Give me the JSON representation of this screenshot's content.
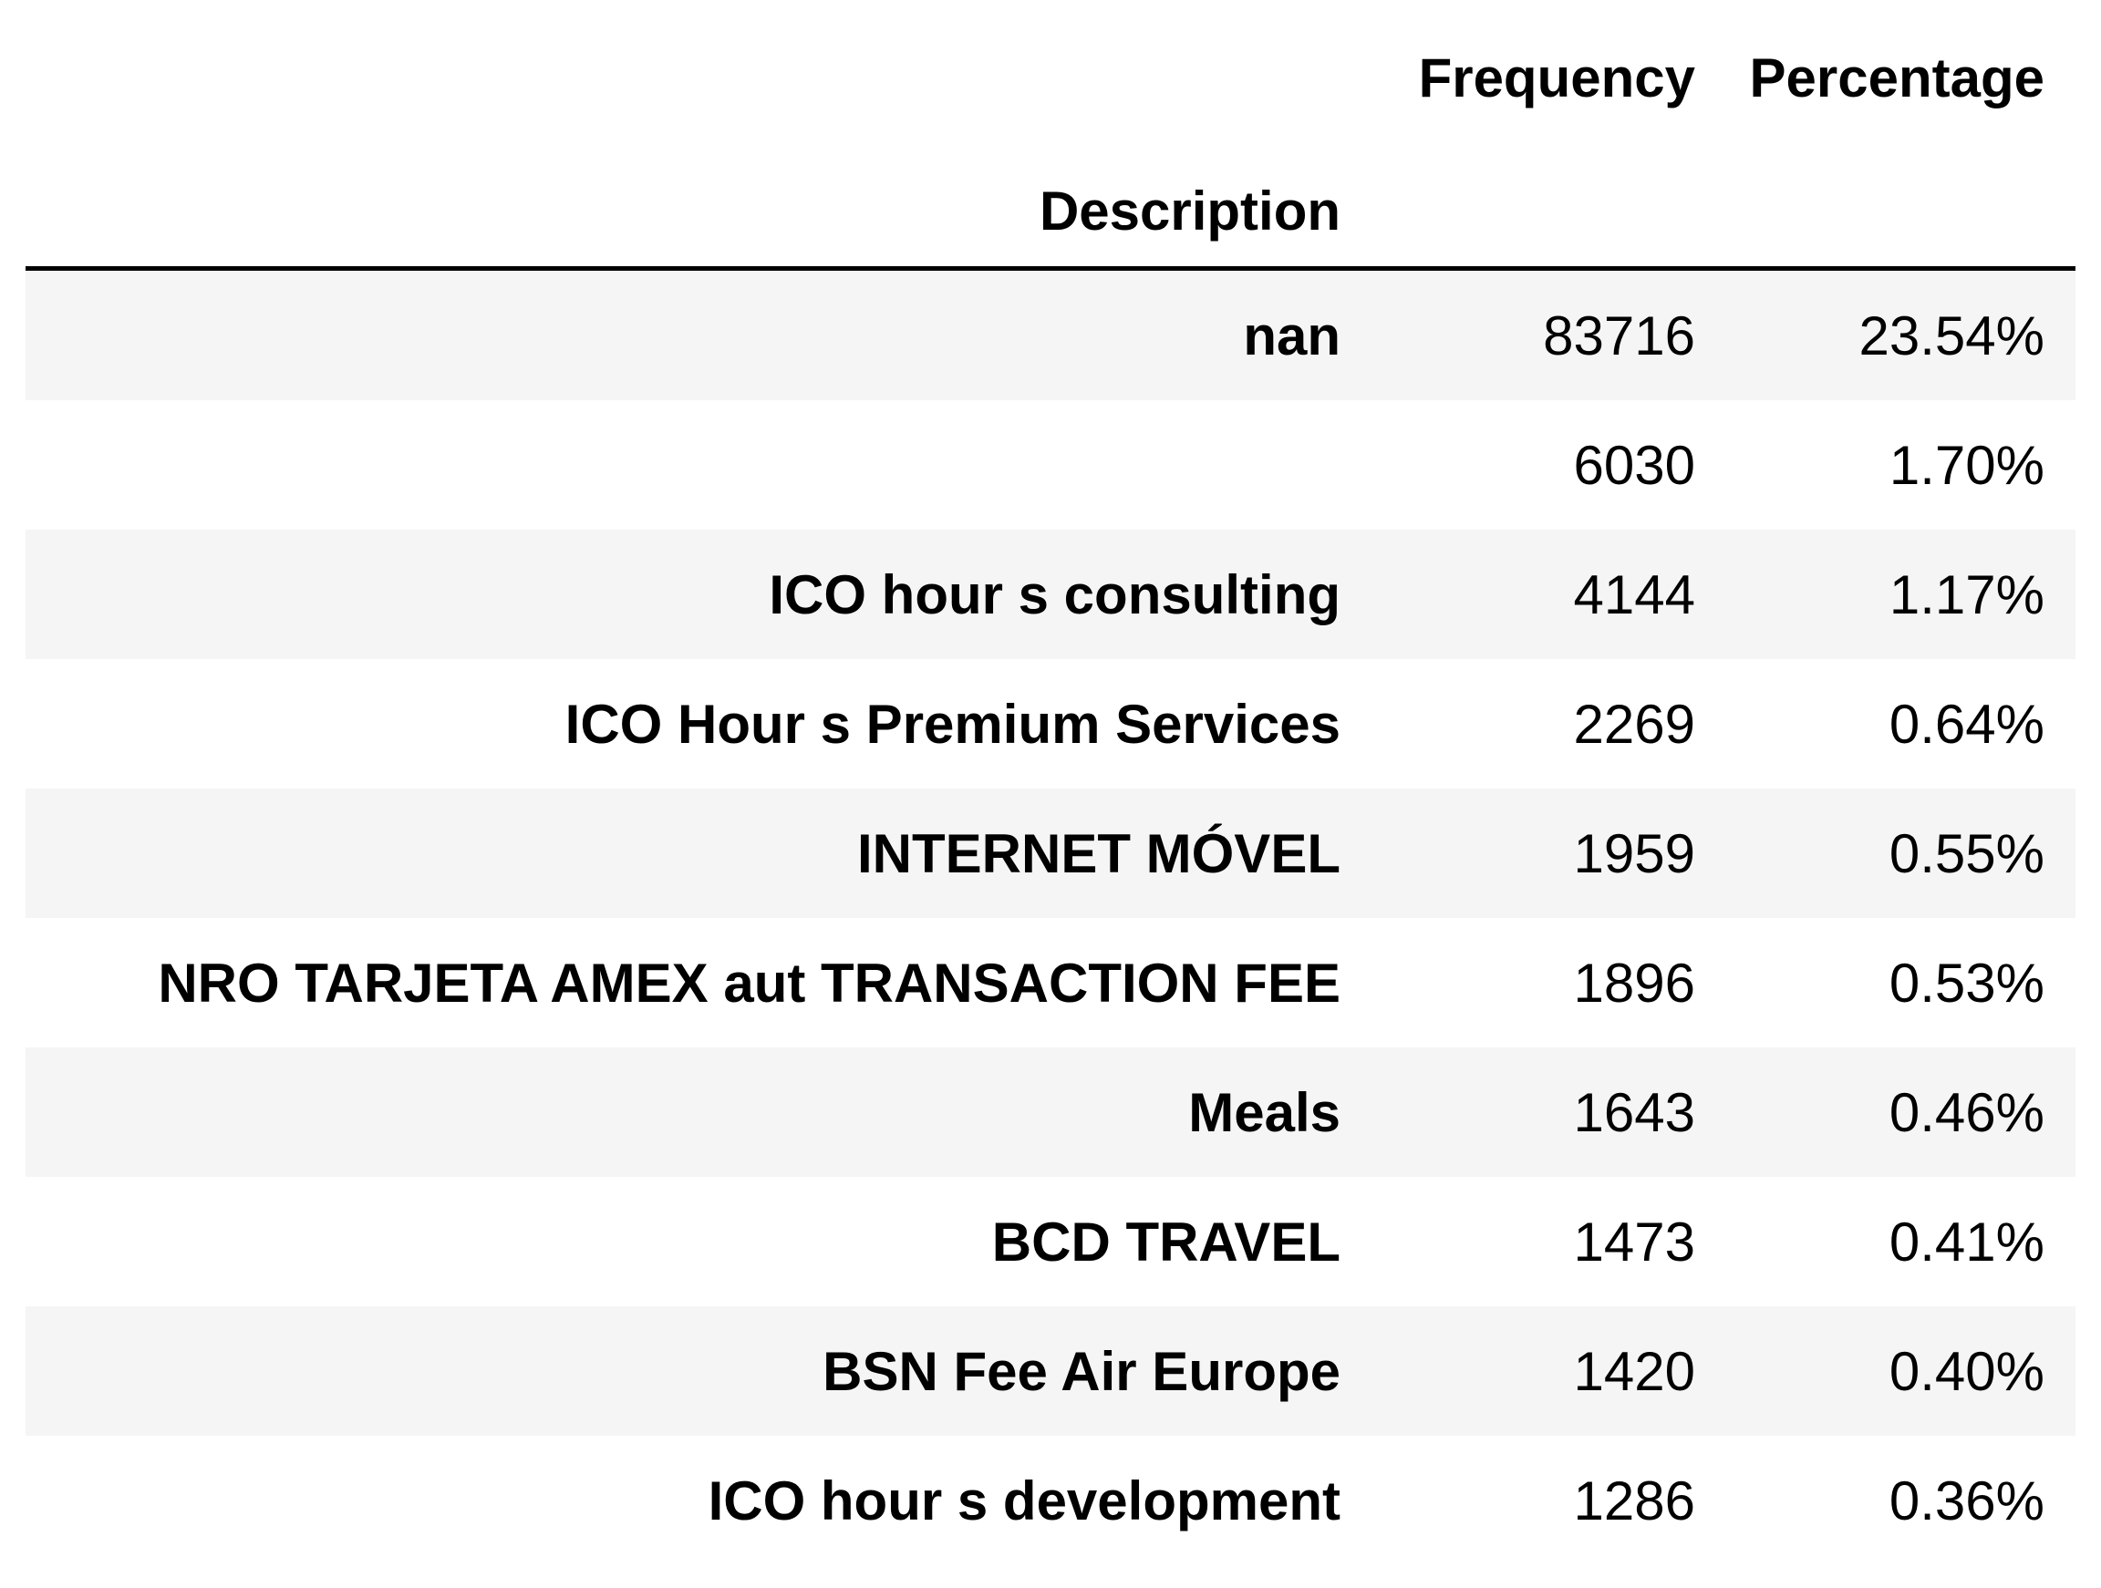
{
  "table": {
    "index_name": "Description",
    "columns": [
      "Frequency",
      "Percentage"
    ],
    "rows": [
      {
        "description": "nan",
        "frequency": "83716",
        "percentage": "23.54%"
      },
      {
        "description": "",
        "frequency": "6030",
        "percentage": "1.70%"
      },
      {
        "description": "ICO hour s consulting",
        "frequency": "4144",
        "percentage": "1.17%"
      },
      {
        "description": "ICO Hour s Premium Services",
        "frequency": "2269",
        "percentage": "0.64%"
      },
      {
        "description": "INTERNET MÓVEL",
        "frequency": "1959",
        "percentage": "0.55%"
      },
      {
        "description": "NRO TARJETA AMEX aut TRANSACTION FEE",
        "frequency": "1896",
        "percentage": "0.53%"
      },
      {
        "description": "Meals",
        "frequency": "1643",
        "percentage": "0.46%"
      },
      {
        "description": "BCD TRAVEL",
        "frequency": "1473",
        "percentage": "0.41%"
      },
      {
        "description": "BSN Fee Air Europe",
        "frequency": "1420",
        "percentage": "0.40%"
      },
      {
        "description": "ICO hour s development",
        "frequency": "1286",
        "percentage": "0.36%"
      }
    ]
  },
  "colors": {
    "stripe": "#f5f5f5",
    "header_rule": "#000000",
    "text": "#000000"
  }
}
